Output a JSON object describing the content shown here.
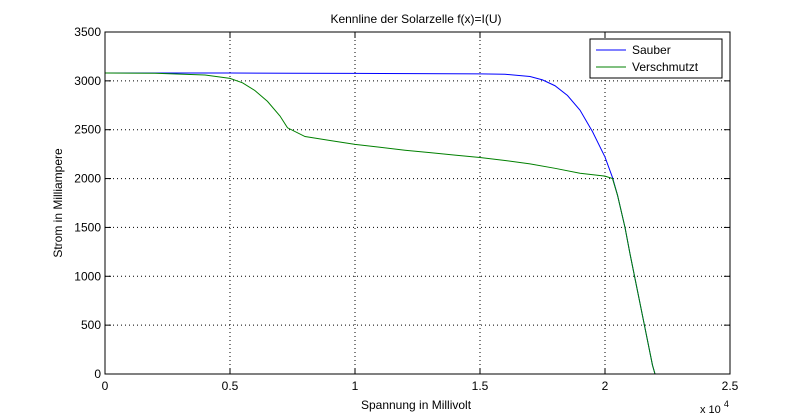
{
  "chart_data": {
    "type": "line",
    "title": "Kennline der Solarzelle f(x)=I(U)",
    "xlabel": "Spannung in Millivolt",
    "ylabel": "Strom in Milliampere",
    "x_multiplier_label": {
      "base": "x 10",
      "exponent": "4"
    },
    "xlim": [
      0,
      2.5
    ],
    "ylim": [
      0,
      3500
    ],
    "xticks": [
      0,
      0.5,
      1,
      1.5,
      2,
      2.5
    ],
    "xtick_labels": [
      "0",
      "0.5",
      "1",
      "1.5",
      "2",
      "2.5"
    ],
    "yticks": [
      0,
      500,
      1000,
      1500,
      2000,
      2500,
      3000,
      3500
    ],
    "ytick_labels": [
      "0",
      "500",
      "1000",
      "1500",
      "2000",
      "2500",
      "3000",
      "3500"
    ],
    "grid": true,
    "legend_position": "top-right",
    "series": [
      {
        "name": "Sauber",
        "color": "#0000ff",
        "points": [
          [
            0,
            3080
          ],
          [
            0.25,
            3080
          ],
          [
            0.5,
            3080
          ],
          [
            0.75,
            3078
          ],
          [
            1.0,
            3076
          ],
          [
            1.25,
            3074
          ],
          [
            1.5,
            3072
          ],
          [
            1.6,
            3068
          ],
          [
            1.7,
            3045
          ],
          [
            1.75,
            3010
          ],
          [
            1.8,
            2950
          ],
          [
            1.85,
            2850
          ],
          [
            1.9,
            2700
          ],
          [
            1.95,
            2480
          ],
          [
            2.0,
            2220
          ],
          [
            2.03,
            2010
          ],
          [
            2.05,
            1830
          ],
          [
            2.08,
            1500
          ],
          [
            2.1,
            1230
          ],
          [
            2.13,
            850
          ],
          [
            2.16,
            470
          ],
          [
            2.19,
            90
          ],
          [
            2.2,
            0
          ]
        ]
      },
      {
        "name": "Verschmutzt",
        "color": "#008000",
        "points": [
          [
            0,
            3080
          ],
          [
            0.2,
            3078
          ],
          [
            0.4,
            3060
          ],
          [
            0.5,
            3025
          ],
          [
            0.55,
            2980
          ],
          [
            0.6,
            2900
          ],
          [
            0.65,
            2790
          ],
          [
            0.7,
            2640
          ],
          [
            0.73,
            2520
          ],
          [
            0.8,
            2430
          ],
          [
            0.9,
            2390
          ],
          [
            1.0,
            2350
          ],
          [
            1.1,
            2320
          ],
          [
            1.2,
            2290
          ],
          [
            1.3,
            2265
          ],
          [
            1.4,
            2240
          ],
          [
            1.5,
            2215
          ],
          [
            1.6,
            2185
          ],
          [
            1.7,
            2150
          ],
          [
            1.8,
            2105
          ],
          [
            1.9,
            2055
          ],
          [
            2.0,
            2025
          ],
          [
            2.03,
            2000
          ],
          [
            2.05,
            1830
          ],
          [
            2.08,
            1500
          ],
          [
            2.1,
            1230
          ],
          [
            2.13,
            850
          ],
          [
            2.16,
            470
          ],
          [
            2.19,
            90
          ],
          [
            2.2,
            0
          ]
        ]
      }
    ]
  }
}
